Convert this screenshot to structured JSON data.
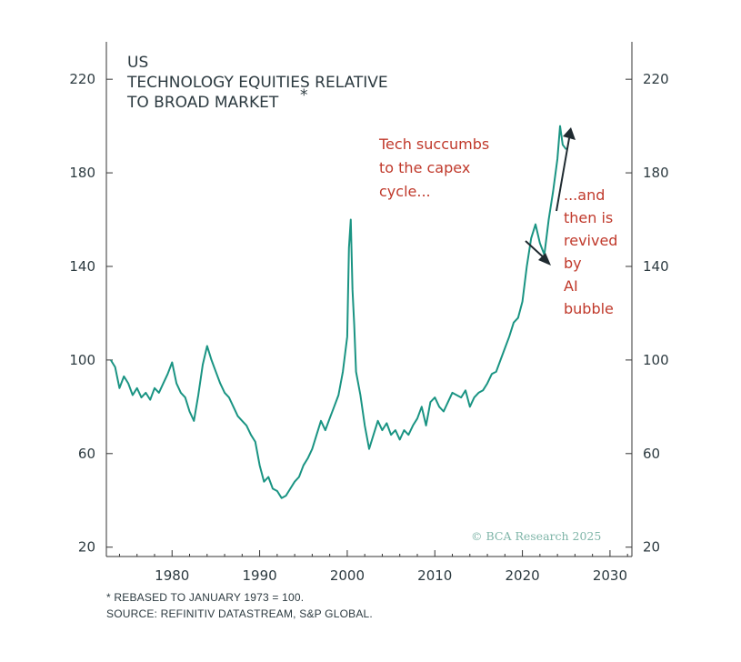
{
  "chart_data": {
    "type": "line",
    "title_lines": [
      "US",
      "TECHNOLOGY EQUITIES RELATIVE",
      "TO BROAD MARKET"
    ],
    "title_marker": "*",
    "x_ticks": [
      1980,
      1990,
      2000,
      2010,
      2020,
      2030
    ],
    "y_ticks": [
      20,
      60,
      100,
      140,
      180,
      220
    ],
    "xlim": [
      1972.5,
      2032.5
    ],
    "ylim": [
      16,
      236
    ],
    "grid": false,
    "series": [
      {
        "color": "#1a9483",
        "x": [
          1973.0,
          1973.5,
          1974.0,
          1974.5,
          1975.0,
          1975.5,
          1976.0,
          1976.5,
          1977.0,
          1977.5,
          1978.0,
          1978.5,
          1979.0,
          1979.5,
          1980.0,
          1980.5,
          1981.0,
          1981.5,
          1982.0,
          1982.5,
          1983.0,
          1983.5,
          1984.0,
          1984.5,
          1985.0,
          1985.5,
          1986.0,
          1986.5,
          1987.0,
          1987.5,
          1988.0,
          1988.5,
          1989.0,
          1989.5,
          1990.0,
          1990.5,
          1991.0,
          1991.5,
          1992.0,
          1992.5,
          1993.0,
          1993.5,
          1994.0,
          1994.5,
          1995.0,
          1995.5,
          1996.0,
          1996.5,
          1997.0,
          1997.5,
          1998.0,
          1998.5,
          1999.0,
          1999.5,
          2000.0,
          2000.2,
          2000.4,
          2000.6,
          2000.8,
          2001.0,
          2001.5,
          2002.0,
          2002.5,
          2003.0,
          2003.5,
          2004.0,
          2004.5,
          2005.0,
          2005.5,
          2006.0,
          2006.5,
          2007.0,
          2007.5,
          2008.0,
          2008.5,
          2009.0,
          2009.5,
          2010.0,
          2010.5,
          2011.0,
          2011.5,
          2012.0,
          2012.5,
          2013.0,
          2013.5,
          2014.0,
          2014.5,
          2015.0,
          2015.5,
          2016.0,
          2016.5,
          2017.0,
          2017.5,
          2018.0,
          2018.5,
          2019.0,
          2019.5,
          2020.0,
          2020.5,
          2021.0,
          2021.5,
          2022.0,
          2022.5,
          2023.0,
          2023.5,
          2024.0,
          2024.3,
          2024.6,
          2025.0
        ],
        "y": [
          100,
          97,
          88,
          93,
          90,
          85,
          88,
          84,
          86,
          83,
          88,
          86,
          90,
          94,
          99,
          90,
          86,
          84,
          78,
          74,
          85,
          98,
          106,
          100,
          95,
          90,
          86,
          84,
          80,
          76,
          74,
          72,
          68,
          65,
          55,
          48,
          50,
          45,
          44,
          41,
          42,
          45,
          48,
          50,
          55,
          58,
          62,
          68,
          74,
          70,
          75,
          80,
          85,
          95,
          110,
          148,
          160,
          130,
          115,
          95,
          85,
          72,
          62,
          68,
          74,
          70,
          73,
          68,
          70,
          66,
          70,
          68,
          72,
          75,
          80,
          72,
          82,
          84,
          80,
          78,
          82,
          86,
          85,
          84,
          87,
          80,
          84,
          86,
          87,
          90,
          94,
          95,
          100,
          105,
          110,
          116,
          118,
          125,
          140,
          152,
          158,
          150,
          145,
          160,
          172,
          186,
          200,
          192,
          190
        ]
      }
    ],
    "annotations": [
      {
        "text_lines": [
          "Tech succumbs",
          "to the capex",
          "cycle..."
        ]
      },
      {
        "text_lines": [
          "...and",
          "then is",
          "revived",
          "by",
          "AI",
          "bubble"
        ]
      }
    ],
    "watermark": "© BCA Research 2025",
    "colors": {
      "line": "#1a9483",
      "annotation": "#c0392b",
      "axis": "#333333",
      "arrow": "#1f2a30"
    }
  },
  "footnotes": {
    "rebased": "* REBASED TO JANUARY 1973 = 100.",
    "source": "SOURCE: REFINITIV DATASTREAM, S&P GLOBAL."
  }
}
